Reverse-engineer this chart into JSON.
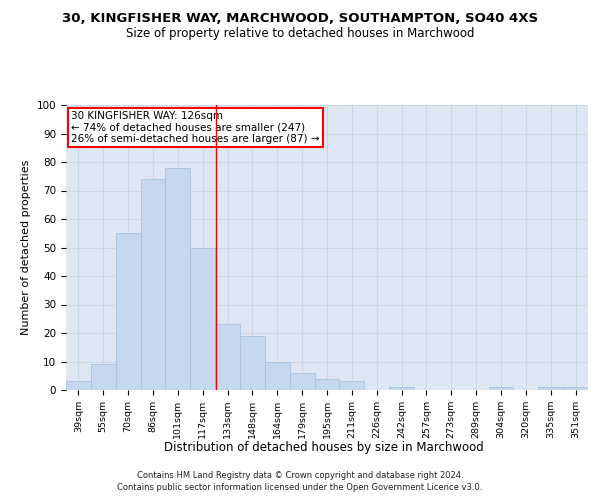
{
  "title_line1": "30, KINGFISHER WAY, MARCHWOOD, SOUTHAMPTON, SO40 4XS",
  "title_line2": "Size of property relative to detached houses in Marchwood",
  "xlabel": "Distribution of detached houses by size in Marchwood",
  "ylabel": "Number of detached properties",
  "bar_values": [
    3,
    9,
    55,
    74,
    78,
    50,
    23,
    19,
    10,
    6,
    4,
    3,
    0,
    1,
    0,
    0,
    0,
    1,
    0,
    1,
    1
  ],
  "bar_labels": [
    "39sqm",
    "55sqm",
    "70sqm",
    "86sqm",
    "101sqm",
    "117sqm",
    "133sqm",
    "148sqm",
    "164sqm",
    "179sqm",
    "195sqm",
    "211sqm",
    "226sqm",
    "242sqm",
    "257sqm",
    "273sqm",
    "289sqm",
    "304sqm",
    "320sqm",
    "335sqm",
    "351sqm"
  ],
  "bar_color": "#c5d8f0",
  "bar_edgecolor": "#a8c4e0",
  "grid_color": "#c8d4e4",
  "background_color": "#dde6f2",
  "vline_x": 5.52,
  "vline_color": "red",
  "annotation_text": "30 KINGFISHER WAY: 126sqm\n← 74% of detached houses are smaller (247)\n26% of semi-detached houses are larger (87) →",
  "annotation_box_facecolor": "white",
  "annotation_box_edgecolor": "red",
  "ylim": [
    0,
    100
  ],
  "yticks": [
    0,
    10,
    20,
    30,
    40,
    50,
    60,
    70,
    80,
    90,
    100
  ],
  "footnote_line1": "Contains HM Land Registry data © Crown copyright and database right 2024.",
  "footnote_line2": "Contains public sector information licensed under the Open Government Licence v3.0."
}
